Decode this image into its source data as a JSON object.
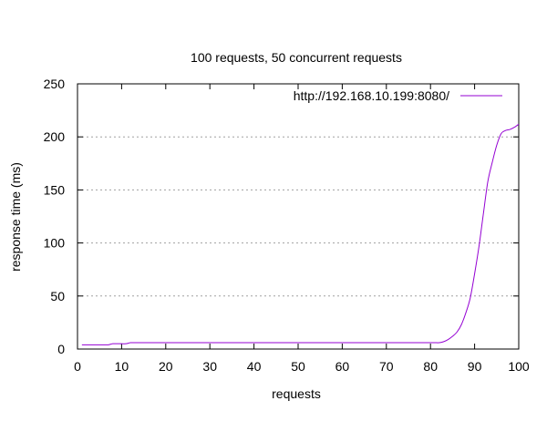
{
  "chart_data": {
    "type": "line",
    "title": "100 requests, 50 concurrent requests",
    "xlabel": "requests",
    "ylabel": "response time (ms)",
    "xlim": [
      0,
      100
    ],
    "ylim": [
      0,
      250
    ],
    "xticks": [
      0,
      10,
      20,
      30,
      40,
      50,
      60,
      70,
      80,
      90,
      100
    ],
    "yticks": [
      0,
      50,
      100,
      150,
      200,
      250
    ],
    "grid": "horizontal dashed",
    "legend_position": "top-right",
    "series": [
      {
        "name": "http://192.168.10.199:8080/",
        "color": "#9400d3",
        "x": [
          1,
          2,
          3,
          4,
          5,
          6,
          7,
          8,
          9,
          10,
          11,
          12,
          13,
          14,
          15,
          16,
          17,
          18,
          19,
          20,
          21,
          22,
          23,
          24,
          25,
          26,
          27,
          28,
          29,
          30,
          31,
          32,
          33,
          34,
          35,
          36,
          37,
          38,
          39,
          40,
          41,
          42,
          43,
          44,
          45,
          46,
          47,
          48,
          49,
          50,
          51,
          52,
          53,
          54,
          55,
          56,
          57,
          58,
          59,
          60,
          61,
          62,
          63,
          64,
          65,
          66,
          67,
          68,
          69,
          70,
          71,
          72,
          73,
          74,
          75,
          76,
          77,
          78,
          79,
          80,
          81,
          82,
          83,
          84,
          85,
          86,
          87,
          88,
          89,
          90,
          91,
          92,
          93,
          94,
          95,
          96,
          97,
          98,
          99,
          100
        ],
        "values": [
          4,
          4,
          4,
          4,
          4,
          4,
          4,
          5,
          5,
          5,
          5,
          6,
          6,
          6,
          6,
          6,
          6,
          6,
          6,
          6,
          6,
          6,
          6,
          6,
          6,
          6,
          6,
          6,
          6,
          6,
          6,
          6,
          6,
          6,
          6,
          6,
          6,
          6,
          6,
          6,
          6,
          6,
          6,
          6,
          6,
          6,
          6,
          6,
          6,
          6,
          6,
          6,
          6,
          6,
          6,
          6,
          6,
          6,
          6,
          6,
          6,
          6,
          6,
          6,
          6,
          6,
          6,
          6,
          6,
          6,
          6,
          6,
          6,
          6,
          6,
          6,
          6,
          6,
          6,
          6,
          6,
          6,
          7,
          9,
          12,
          16,
          23,
          34,
          48,
          71,
          97,
          128,
          158,
          176,
          192,
          203,
          206,
          207,
          209,
          212
        ]
      }
    ]
  }
}
